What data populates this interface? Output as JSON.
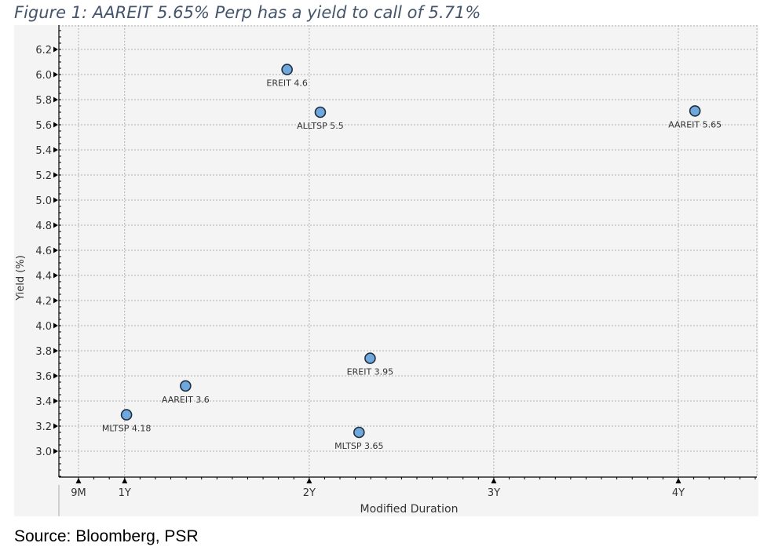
{
  "figure_title": "Figure 1: AAREIT 5.65% Perp has a yield to call of 5.71%",
  "source": "Source: Bloomberg, PSR",
  "colors": {
    "point_fill": "#6fa8dc",
    "point_stroke": "#1f2d3d",
    "title": "#44546a",
    "plot_bg": "#f4f4f4",
    "grid": "#b0b0b0"
  },
  "chart_data": {
    "type": "scatter",
    "xlabel": "Modified Duration",
    "ylabel": "Yield (%)",
    "xlim": [
      0.75,
      4.5
    ],
    "ylim": [
      2.8,
      6.4
    ],
    "x_ticks": [
      {
        "value": 0.75,
        "label": "9M"
      },
      {
        "value": 1,
        "label": "1Y"
      },
      {
        "value": 2,
        "label": "2Y"
      },
      {
        "value": 3,
        "label": "3Y"
      },
      {
        "value": 4,
        "label": "4Y"
      }
    ],
    "y_ticks": [
      3.0,
      3.2,
      3.4,
      3.6,
      3.8,
      4.0,
      4.2,
      4.4,
      4.6,
      4.8,
      5.0,
      5.2,
      5.4,
      5.6,
      5.8,
      6.0,
      6.2
    ],
    "y_tick_labels": [
      "3.0",
      "3.2",
      "3.4",
      "3.6",
      "3.8",
      "4.0",
      "4.2",
      "4.4",
      "4.6",
      "4.8",
      "5.0",
      "5.2",
      "5.4",
      "5.6",
      "5.8",
      "6.0",
      "6.2"
    ],
    "grid": true,
    "points": [
      {
        "label": "EREIT 4.6",
        "x": 1.88,
        "y": 6.04
      },
      {
        "label": "ALLTSP 5.5",
        "x": 2.06,
        "y": 5.7
      },
      {
        "label": "AAREIT 5.65",
        "x": 4.09,
        "y": 5.71
      },
      {
        "label": "EREIT 3.95",
        "x": 2.33,
        "y": 3.74
      },
      {
        "label": "AAREIT 3.6",
        "x": 1.33,
        "y": 3.52
      },
      {
        "label": "MLTSP 4.18",
        "x": 1.01,
        "y": 3.29
      },
      {
        "label": "MLTSP 3.65",
        "x": 2.27,
        "y": 3.15
      }
    ]
  }
}
